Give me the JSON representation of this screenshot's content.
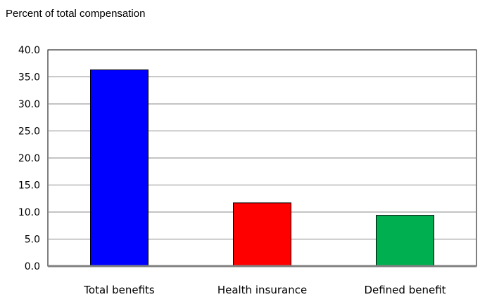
{
  "chart_data": {
    "type": "bar",
    "ylabel": "Percent of total compensation",
    "categories": [
      "Total benefits",
      "Health insurance",
      "Defined benefit"
    ],
    "values": [
      36.3,
      11.7,
      9.4
    ],
    "colors": [
      "#0000ff",
      "#ff0000",
      "#00b050"
    ],
    "ylim": [
      0,
      40
    ],
    "yticks": [
      "0.0",
      "5.0",
      "10.0",
      "15.0",
      "20.0",
      "25.0",
      "30.0",
      "35.0",
      "40.0"
    ],
    "grid": true
  }
}
